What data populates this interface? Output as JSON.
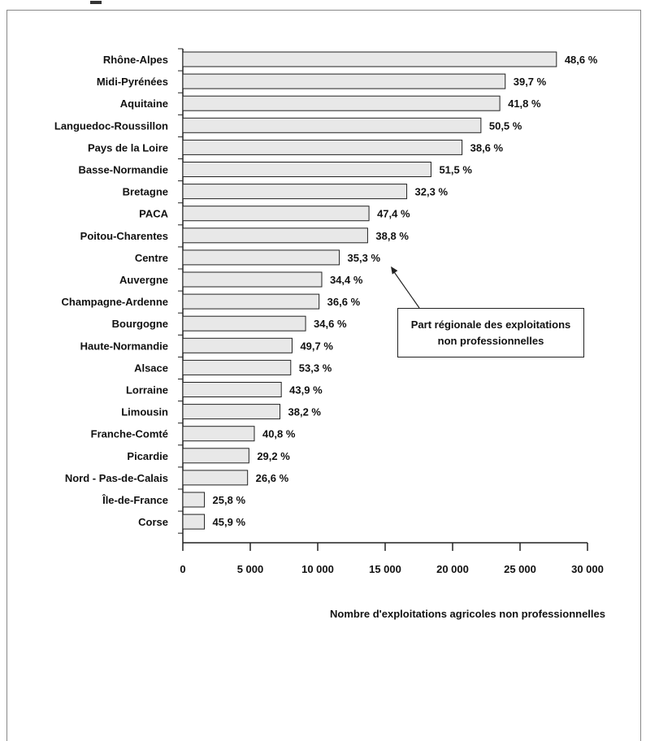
{
  "chart_data": {
    "type": "bar",
    "orientation": "horizontal",
    "categories": [
      "Rhône-Alpes",
      "Midi-Pyrénées",
      "Aquitaine",
      "Languedoc-Roussillon",
      "Pays de la Loire",
      "Basse-Normandie",
      "Bretagne",
      "PACA",
      "Poitou-Charentes",
      "Centre",
      "Auvergne",
      "Champagne-Ardenne",
      "Bourgogne",
      "Haute-Normandie",
      "Alsace",
      "Lorraine",
      "Limousin",
      "Franche-Comté",
      "Picardie",
      "Nord - Pas-de-Calais",
      "Île-de-France",
      "Corse"
    ],
    "values": [
      27700,
      23900,
      23500,
      22100,
      20700,
      18400,
      16600,
      13800,
      13700,
      11600,
      10300,
      10100,
      9100,
      8100,
      8000,
      7300,
      7200,
      5300,
      4900,
      4800,
      1600,
      1600
    ],
    "value_labels": [
      "48,6 %",
      "39,7 %",
      "41,8 %",
      "50,5 %",
      "38,6 %",
      "51,5 %",
      "32,3 %",
      "47,4 %",
      "38,8 %",
      "35,3 %",
      "34,4 %",
      "36,6 %",
      "34,6 %",
      "49,7 %",
      "53,3 %",
      "43,9 %",
      "38,2 %",
      "40,8 %",
      "29,2 %",
      "26,6 %",
      "25,8 %",
      "45,9 %"
    ],
    "xlim": [
      0,
      30000
    ],
    "xticks": [
      0,
      5000,
      10000,
      15000,
      20000,
      25000,
      30000
    ],
    "xtick_labels": [
      "0",
      "5 000",
      "10 000",
      "15 000",
      "20 000",
      "25 000",
      "30 000"
    ],
    "xlabel": "Nombre d'exploitations agricoles non professionnelles",
    "ylabel": "",
    "title": "",
    "grid": false,
    "bar_color": "#e8e8e8",
    "bar_edge_color": "#222222",
    "annotation": {
      "lines": [
        "Part régionale des exploitations",
        "non professionnelles"
      ],
      "points_to": "Centre"
    }
  }
}
